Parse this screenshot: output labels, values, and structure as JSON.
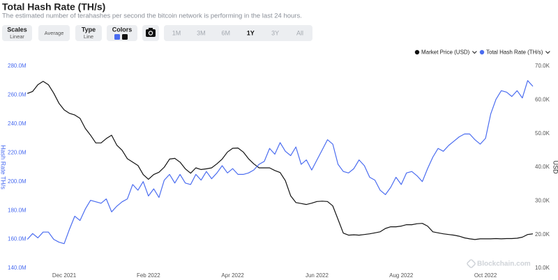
{
  "header": {
    "title": "Total Hash Rate (TH/s)",
    "subtitle": "The estimated number of terahashes per second the bitcoin network is performing in the last 24 hours."
  },
  "toolbar": {
    "scales": {
      "label": "Scales",
      "value": "Linear"
    },
    "average": "Average",
    "type": {
      "label": "Type",
      "value": "Line"
    },
    "colors": {
      "label": "Colors"
    },
    "ranges": [
      "1M",
      "3M",
      "6M",
      "1Y",
      "3Y",
      "All"
    ],
    "active_range": 3
  },
  "watermark": "Blockchain.com",
  "chart_data": {
    "type": "line",
    "y_label": "Hash Rate TH/s",
    "y2_label": "USD",
    "categories": [
      null,
      null,
      null,
      null,
      null,
      null,
      null,
      "Dec 2021",
      null,
      null,
      null,
      null,
      null,
      null,
      null,
      null,
      null,
      null,
      null,
      null,
      null,
      null,
      null,
      "Feb 2022",
      null,
      null,
      null,
      null,
      null,
      null,
      null,
      null,
      null,
      null,
      null,
      null,
      null,
      null,
      null,
      "Apr 2022",
      null,
      null,
      null,
      null,
      null,
      null,
      null,
      null,
      null,
      null,
      null,
      null,
      null,
      null,
      null,
      "Jun 2022",
      null,
      null,
      null,
      null,
      null,
      null,
      null,
      null,
      null,
      null,
      null,
      null,
      null,
      null,
      null,
      "Aug 2022",
      null,
      null,
      null,
      null,
      null,
      null,
      null,
      null,
      null,
      null,
      null,
      null,
      null,
      null,
      null,
      "Oct 2022",
      null,
      null,
      null,
      null,
      null,
      null,
      null,
      null,
      null
    ],
    "ylim": [
      140000000,
      280000000
    ],
    "yticks": [
      {
        "value": 140000000,
        "label": "140.0M"
      },
      {
        "value": 160000000,
        "label": "160.0M"
      },
      {
        "value": 180000000,
        "label": "180.0M"
      },
      {
        "value": 200000000,
        "label": "200.0M"
      },
      {
        "value": 220000000,
        "label": "220.0M"
      },
      {
        "value": 240000000,
        "label": "240.0M"
      },
      {
        "value": 260000000,
        "label": "260.0M"
      },
      {
        "value": 280000000,
        "label": "280.0M"
      }
    ],
    "y2lim": [
      10000,
      70000
    ],
    "y2ticks": [
      {
        "value": 10000,
        "label": "10.0K"
      },
      {
        "value": 20000,
        "label": "20.0K"
      },
      {
        "value": 30000,
        "label": "30.0K"
      },
      {
        "value": 40000,
        "label": "40.0K"
      },
      {
        "value": 50000,
        "label": "50.0K"
      },
      {
        "value": 60000,
        "label": "60.0K"
      },
      {
        "value": 70000,
        "label": "70.0K"
      }
    ],
    "grid": false,
    "series": [
      {
        "name": "Market Price (USD)",
        "color": "#111111",
        "axis": "y2",
        "values": [
          61900,
          62500,
          64500,
          65500,
          64500,
          62000,
          59000,
          57000,
          56000,
          55500,
          54500,
          51500,
          49500,
          47200,
          47200,
          48500,
          49500,
          46500,
          45000,
          42500,
          41500,
          40500,
          37800,
          36400,
          37800,
          38500,
          40000,
          42400,
          42600,
          41500,
          39500,
          38200,
          39800,
          39300,
          39500,
          39800,
          41000,
          42400,
          44500,
          45600,
          45700,
          44500,
          42500,
          41000,
          39800,
          39800,
          39800,
          39000,
          38400,
          36000,
          31500,
          29500,
          29200,
          28900,
          29300,
          29800,
          29900,
          29800,
          28500,
          24500,
          20400,
          19800,
          19900,
          19800,
          20000,
          20200,
          20500,
          20800,
          21800,
          22300,
          22300,
          22500,
          22900,
          22900,
          23200,
          23300,
          22500,
          20800,
          20500,
          20200,
          20000,
          19800,
          19500,
          19000,
          18700,
          18500,
          18700,
          18700,
          18700,
          18800,
          18700,
          18800,
          18800,
          18900,
          19200,
          20000,
          20200
        ]
      },
      {
        "name": "Total Hash Rate (TH/s)",
        "color": "#4a6cf0",
        "axis": "y",
        "values": [
          160000000,
          164000000,
          161000000,
          165000000,
          165000000,
          160000000,
          158000000,
          157000000,
          167000000,
          176000000,
          173000000,
          181000000,
          187000000,
          186000000,
          185000000,
          188000000,
          179000000,
          183000000,
          186000000,
          188000000,
          198000000,
          194000000,
          200000000,
          190000000,
          195000000,
          189000000,
          201000000,
          205000000,
          199000000,
          205000000,
          199000000,
          198000000,
          205000000,
          201000000,
          207000000,
          202000000,
          206000000,
          211000000,
          206000000,
          209000000,
          205000000,
          205000000,
          206000000,
          208000000,
          212000000,
          214000000,
          223000000,
          219000000,
          227000000,
          221000000,
          218000000,
          224000000,
          212000000,
          215000000,
          208000000,
          215000000,
          222000000,
          229000000,
          226000000,
          212000000,
          207000000,
          206000000,
          209000000,
          215000000,
          211000000,
          203000000,
          201000000,
          194000000,
          191000000,
          196000000,
          203000000,
          198000000,
          206000000,
          207000000,
          204000000,
          200000000,
          209000000,
          217000000,
          223000000,
          221000000,
          225000000,
          228000000,
          231000000,
          233000000,
          233000000,
          229000000,
          226000000,
          230000000,
          247000000,
          257000000,
          263000000,
          262000000,
          259000000,
          263000000,
          258000000,
          270000000,
          266000000
        ]
      }
    ]
  }
}
